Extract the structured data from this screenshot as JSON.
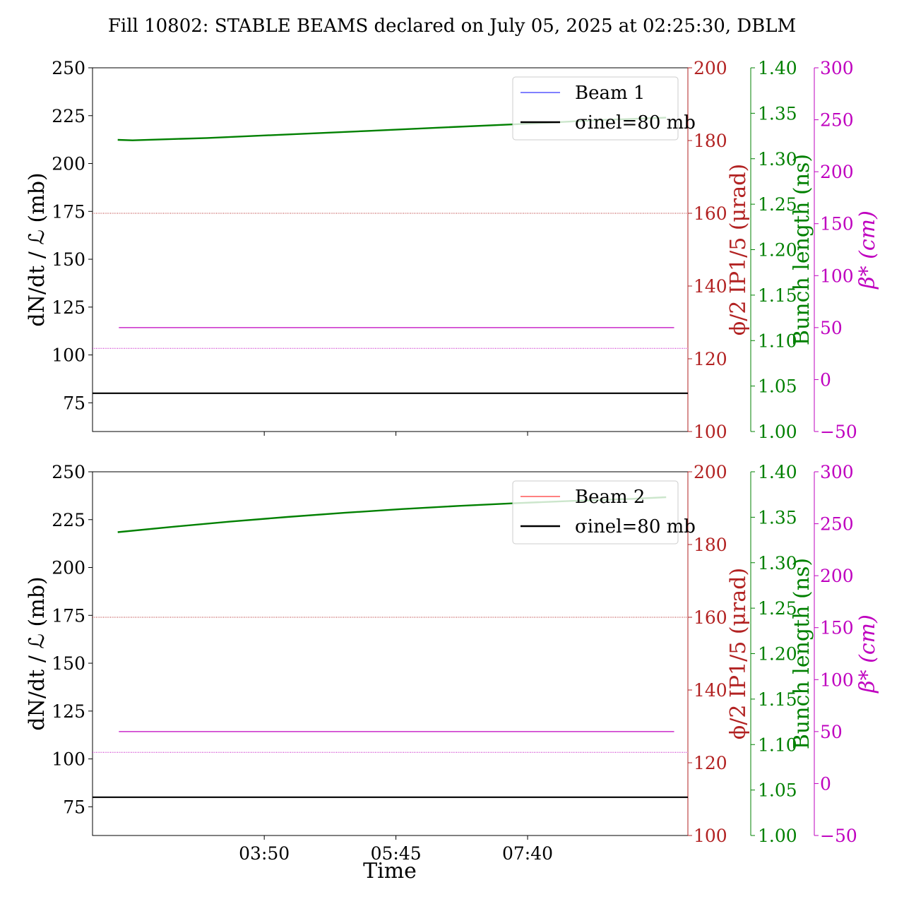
{
  "figure": {
    "title": "Fill 10802: STABLE BEAMS declared on July 05, 2025 at 02:25:30, DBLM",
    "xlabel": "Time",
    "colors": {
      "left": "#000000",
      "crossing": "#b22222",
      "bunch": "#008000",
      "beta": "#bf00bf",
      "beam1": "#0000ff",
      "beam2": "#ff0000",
      "sigma": "#000000"
    }
  },
  "chart_data": [
    {
      "type": "line",
      "x_ticks": [
        "03:50",
        "05:45",
        "07:40"
      ],
      "x_range_minutes": [
        80,
        600
      ],
      "x_tick_minutes": [
        230,
        345,
        460
      ],
      "left_axis": {
        "label": "dN/dt / ℒ (mb)",
        "ylim": [
          60,
          250
        ],
        "ticks": [
          75,
          100,
          125,
          150,
          175,
          200,
          225,
          250
        ]
      },
      "crossing_axis": {
        "label": "ϕ/2 IP1/5 (μrad)",
        "ylim": [
          100,
          200
        ],
        "ticks": [
          100,
          120,
          140,
          160,
          180,
          200
        ]
      },
      "bunch_axis": {
        "label": "Bunch length (ns)",
        "ylim": [
          1.0,
          1.4
        ],
        "ticks": [
          "1.00",
          "1.05",
          "1.10",
          "1.15",
          "1.20",
          "1.25",
          "1.30",
          "1.35",
          "1.40"
        ]
      },
      "beta_axis": {
        "label": "β* (cm)",
        "ylim": [
          -50,
          300
        ],
        "ticks": [
          -50,
          0,
          50,
          100,
          150,
          200,
          250,
          300
        ]
      },
      "series": [
        {
          "name": "Beam 1",
          "axis": "left",
          "color": "#0000ff",
          "x": [],
          "y": []
        },
        {
          "name": "σinel=80 mb",
          "axis": "left",
          "color": "#000000",
          "x": [
            80,
            600
          ],
          "y": [
            80,
            80
          ]
        },
        {
          "axis": "bunch",
          "color": "#008000",
          "x": [
            102,
            115,
            180,
            250,
            320,
            390,
            460,
            520,
            581
          ],
          "y": [
            1.3208,
            1.3202,
            1.3228,
            1.3267,
            1.3306,
            1.3346,
            1.3385,
            1.3424,
            1.3452
          ]
        },
        {
          "axis": "crossing",
          "color": "#b22222",
          "style": "dotted",
          "x": [
            80,
            600
          ],
          "y": [
            160,
            160
          ]
        },
        {
          "axis": "beta",
          "color": "#bf00bf",
          "x": [
            103,
            588
          ],
          "y": [
            50,
            50
          ]
        },
        {
          "axis": "beta",
          "color": "#bf00bf",
          "style": "dotted",
          "x": [
            80,
            600
          ],
          "y": [
            30,
            30
          ]
        }
      ],
      "legend": {
        "position": "top-right",
        "entries": [
          {
            "text": "Beam 1",
            "color": "#0000ff",
            "lineWidth": 1
          },
          {
            "text": "σinel=80 mb",
            "color": "#000000",
            "lineWidth": 2.5
          }
        ]
      }
    },
    {
      "type": "line",
      "x_ticks": [
        "03:50",
        "05:45",
        "07:40"
      ],
      "x_range_minutes": [
        80,
        600
      ],
      "x_tick_minutes": [
        230,
        345,
        460
      ],
      "left_axis": {
        "label": "dN/dt / ℒ (mb)",
        "ylim": [
          60,
          250
        ],
        "ticks": [
          75,
          100,
          125,
          150,
          175,
          200,
          225,
          250
        ]
      },
      "crossing_axis": {
        "label": "ϕ/2 IP1/5 (μrad)",
        "ylim": [
          100,
          200
        ],
        "ticks": [
          100,
          120,
          140,
          160,
          180,
          200
        ]
      },
      "bunch_axis": {
        "label": "Bunch length (ns)",
        "ylim": [
          1.0,
          1.4
        ],
        "ticks": [
          "1.00",
          "1.05",
          "1.10",
          "1.15",
          "1.20",
          "1.25",
          "1.30",
          "1.35",
          "1.40"
        ]
      },
      "beta_axis": {
        "label": "β* (cm)",
        "ylim": [
          -50,
          300
        ],
        "ticks": [
          -50,
          0,
          50,
          100,
          150,
          200,
          250,
          300
        ]
      },
      "series": [
        {
          "name": "Beam 2",
          "axis": "left",
          "color": "#ff0000",
          "x": [],
          "y": []
        },
        {
          "name": "σinel=80 mb",
          "axis": "left",
          "color": "#000000",
          "x": [
            80,
            600
          ],
          "y": [
            80,
            80
          ]
        },
        {
          "axis": "bunch",
          "color": "#008000",
          "x": [
            102,
            150,
            200,
            250,
            300,
            350,
            400,
            450,
            500,
            550,
            581
          ],
          "y": [
            1.3336,
            1.3395,
            1.3452,
            1.3503,
            1.3549,
            1.359,
            1.3625,
            1.3655,
            1.368,
            1.3702,
            1.372
          ]
        },
        {
          "axis": "crossing",
          "color": "#b22222",
          "style": "dotted",
          "x": [
            80,
            600
          ],
          "y": [
            160,
            160
          ]
        },
        {
          "axis": "beta",
          "color": "#bf00bf",
          "x": [
            103,
            588
          ],
          "y": [
            50,
            50
          ]
        },
        {
          "axis": "beta",
          "color": "#bf00bf",
          "style": "dotted",
          "x": [
            80,
            600
          ],
          "y": [
            30,
            30
          ]
        }
      ],
      "legend": {
        "position": "top-right",
        "entries": [
          {
            "text": "Beam 2",
            "color": "#ff0000",
            "lineWidth": 1
          },
          {
            "text": "σinel=80 mb",
            "color": "#000000",
            "lineWidth": 2.5
          }
        ]
      }
    }
  ]
}
